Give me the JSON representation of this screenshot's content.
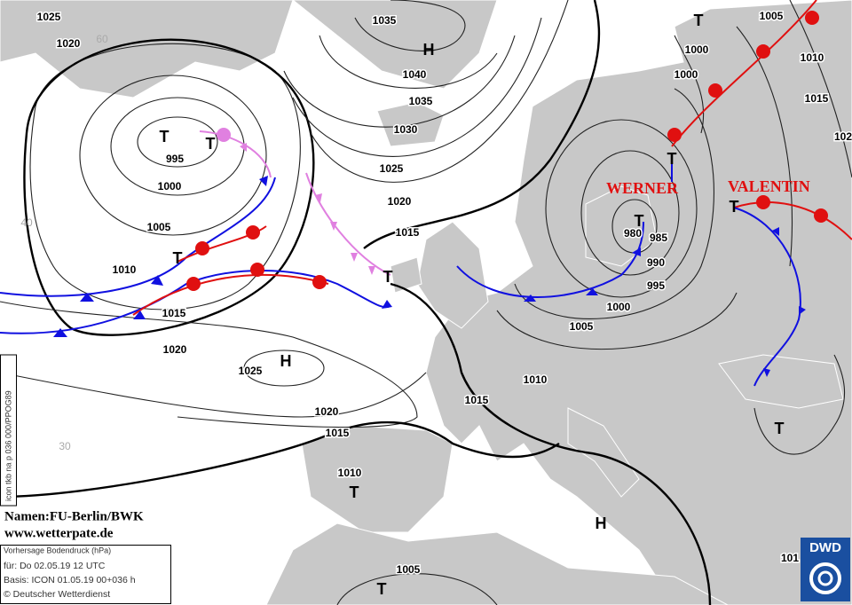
{
  "isobar_labels": [
    1025,
    1020,
    1035,
    1040,
    1035,
    1030,
    1025,
    1020,
    1015,
    995,
    1000,
    1005,
    1010,
    1015,
    1020,
    1025,
    1020,
    1015,
    1010,
    1015,
    1010,
    1005,
    1000,
    995,
    990,
    985,
    980,
    1000,
    1000,
    1005,
    1010,
    1015,
    102,
    101,
    1005
  ],
  "centers": [
    "T",
    "T",
    "H",
    "T",
    "T",
    "T",
    "T",
    "T",
    "H",
    "H",
    "T",
    "T",
    "T",
    "T"
  ],
  "front_names": [
    "WERNER",
    "VALENTIN"
  ],
  "latitudes": [
    "60",
    "40",
    "30"
  ],
  "credits": {
    "names": "Namen:FU-Berlin/BWK",
    "site": "www.wetterpate.de"
  },
  "info_box": [
    "Vorhersage Bodendruck (hPa)",
    "für:  Do 02.05.19  12 UTC",
    "Basis: ICON  01.05.19 00+036 h",
    "© Deutscher Wetterdienst"
  ],
  "model_id": "icon tkb na p 036 000/PPOG89",
  "logo": "DWD"
}
